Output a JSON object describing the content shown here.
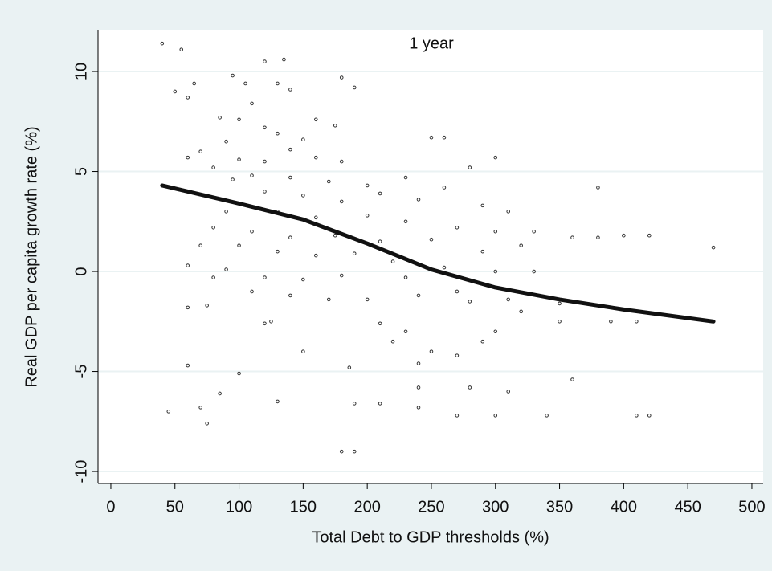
{
  "chart_data": {
    "type": "scatter",
    "title": "1 year",
    "x_label": "Total Debt to GDP thresholds (%)",
    "y_label": "Real GDP per capita growth rate (%)",
    "xlim": [
      -10,
      508.8
    ],
    "ylim": [
      -10.6,
      12.09
    ],
    "xticks": [
      0,
      50,
      100,
      150,
      200,
      250,
      300,
      350,
      400,
      450,
      500
    ],
    "yticks": [
      -10,
      -5,
      0,
      5,
      10
    ],
    "grid": true,
    "series": [
      {
        "kind": "scatter",
        "color": "#333333",
        "x": [
          40,
          55,
          50,
          65,
          60,
          95,
          105,
          120,
          135,
          130,
          110,
          140,
          180,
          190,
          85,
          100,
          120,
          160,
          175,
          70,
          90,
          130,
          150,
          140,
          60,
          80,
          100,
          120,
          160,
          180,
          95,
          110,
          140,
          170,
          200,
          250,
          260,
          300,
          280,
          230,
          260,
          120,
          150,
          180,
          210,
          240,
          290,
          310,
          90,
          130,
          160,
          200,
          230,
          270,
          300,
          330,
          360,
          380,
          400,
          420,
          470,
          380,
          80,
          110,
          140,
          175,
          210,
          250,
          290,
          320,
          70,
          100,
          130,
          160,
          190,
          220,
          260,
          300,
          330,
          60,
          90,
          120,
          150,
          180,
          230,
          270,
          310,
          350,
          80,
          110,
          140,
          170,
          200,
          240,
          280,
          320,
          350,
          390,
          410,
          120,
          210,
          230,
          300,
          290,
          220,
          250,
          150,
          100,
          60,
          240,
          360,
          270,
          240,
          280,
          310,
          210,
          190,
          130,
          70,
          85,
          75,
          45,
          240,
          300,
          340,
          270,
          410,
          420,
          190,
          180,
          186,
          75,
          125,
          60
        ],
        "values": [
          11.4,
          11.1,
          9.0,
          9.4,
          8.7,
          9.8,
          9.4,
          10.5,
          10.6,
          9.4,
          8.4,
          9.1,
          9.7,
          9.2,
          7.7,
          7.6,
          7.2,
          7.6,
          7.3,
          6.0,
          6.5,
          6.9,
          6.6,
          6.1,
          5.7,
          5.2,
          5.6,
          5.5,
          5.7,
          5.5,
          4.6,
          4.8,
          4.7,
          4.5,
          4.3,
          6.7,
          6.7,
          5.7,
          5.2,
          4.7,
          4.2,
          4.0,
          3.8,
          3.5,
          3.9,
          3.6,
          3.3,
          3.0,
          3.0,
          3.0,
          2.7,
          2.8,
          2.5,
          2.2,
          2.0,
          2.0,
          1.7,
          1.7,
          1.8,
          1.8,
          1.2,
          4.2,
          2.2,
          2.0,
          1.7,
          1.8,
          1.5,
          1.6,
          1.0,
          1.3,
          1.3,
          1.3,
          1.0,
          0.8,
          0.9,
          0.5,
          0.2,
          0.0,
          0.0,
          0.3,
          0.1,
          -0.3,
          -0.4,
          -0.2,
          -0.3,
          -1.0,
          -1.4,
          -1.6,
          -0.3,
          -1.0,
          -1.2,
          -1.4,
          -1.4,
          -1.2,
          -1.5,
          -2.0,
          -2.5,
          -2.5,
          -2.5,
          -2.6,
          -2.6,
          -3.0,
          -3.0,
          -3.5,
          -3.5,
          -4.0,
          -4.0,
          -5.1,
          -4.7,
          -4.6,
          -5.4,
          -4.2,
          -5.8,
          -5.8,
          -6.0,
          -6.6,
          -6.6,
          -6.5,
          -6.8,
          -6.1,
          -7.6,
          -7.0,
          -6.8,
          -7.2,
          -7.2,
          -7.2,
          -7.2,
          -7.2,
          -9.0,
          -9.0,
          -4.8,
          -1.7,
          -2.5,
          -1.8
        ]
      },
      {
        "kind": "line",
        "color": "#111111",
        "x": [
          40,
          100,
          150,
          200,
          250,
          300,
          350,
          400,
          470
        ],
        "values": [
          4.3,
          3.4,
          2.6,
          1.4,
          0.1,
          -0.8,
          -1.4,
          -1.9,
          -2.5
        ]
      }
    ]
  }
}
